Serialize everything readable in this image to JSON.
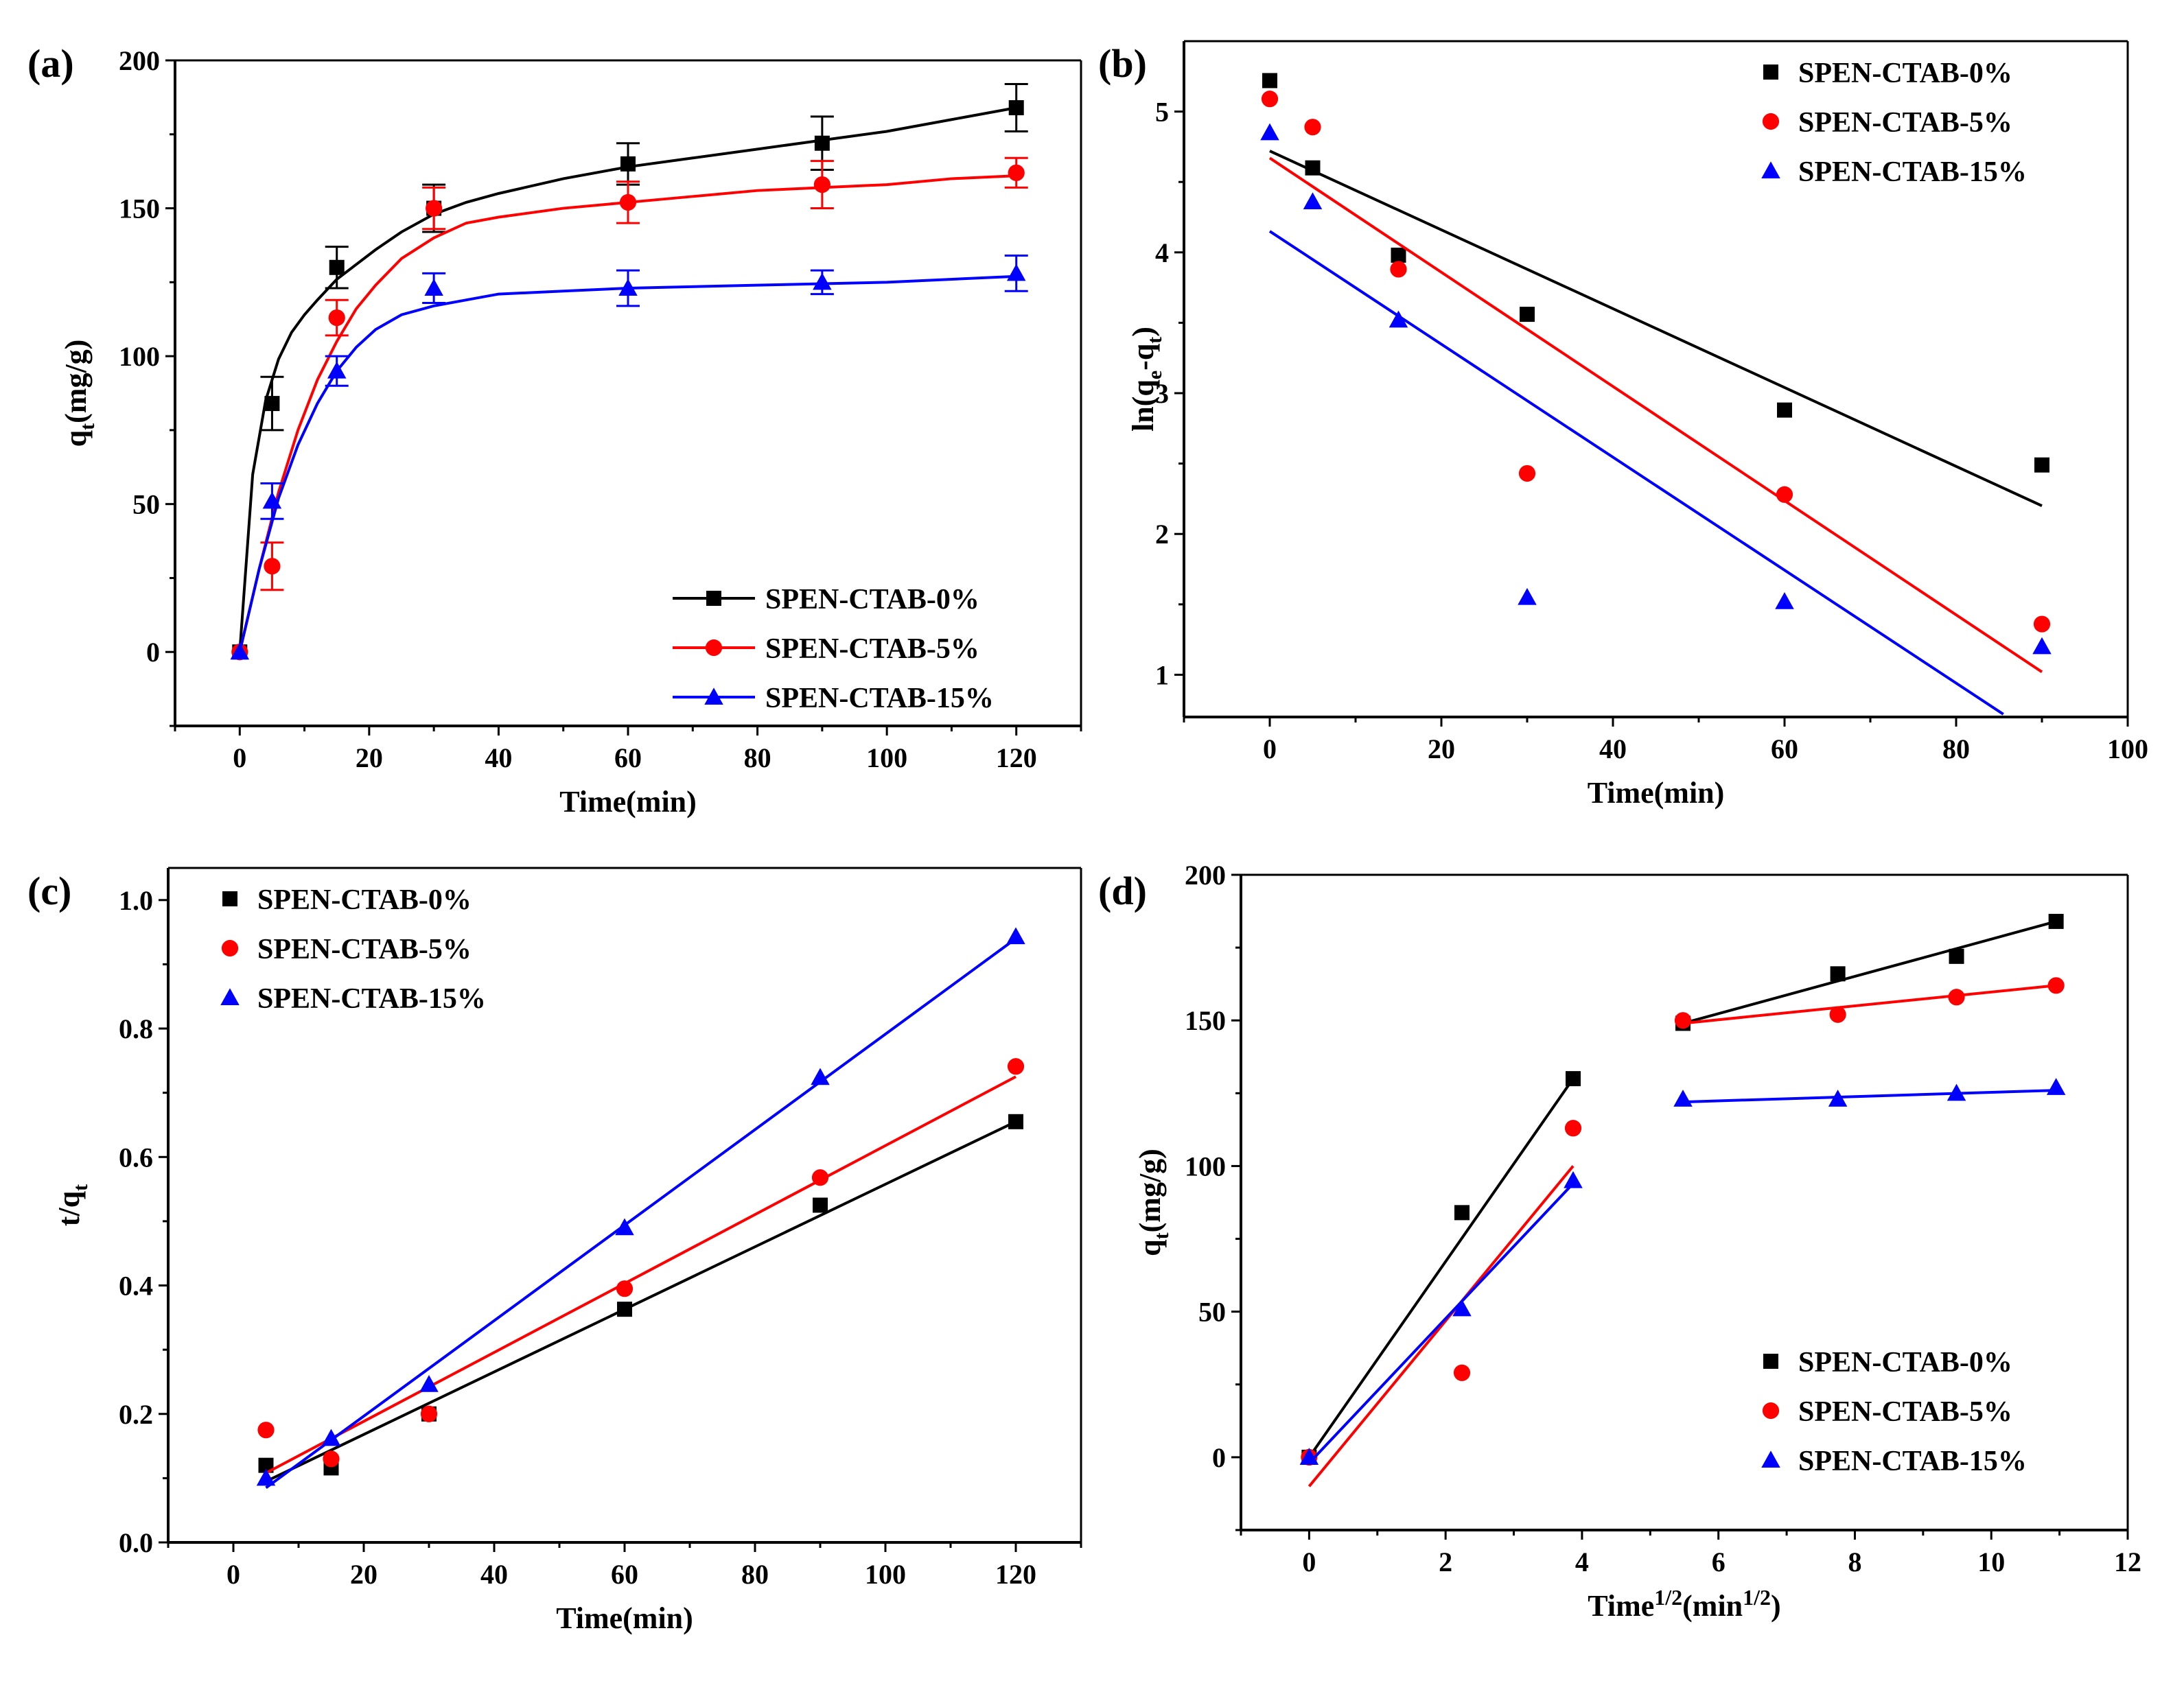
{
  "chart_data": [
    {
      "id": "a",
      "panel_label": "(a)",
      "type": "line",
      "xlabel": "Time(min)",
      "ylabel_main": "q",
      "ylabel_sub": "t",
      "ylabel_tail": "(mg/g)",
      "xlim": [
        -10,
        130
      ],
      "ylim": [
        -25,
        200
      ],
      "xticks": [
        0,
        20,
        40,
        60,
        80,
        100,
        120
      ],
      "yticks": [
        0,
        50,
        100,
        150,
        200
      ],
      "legend": "bottom-right",
      "legend_mode": "line",
      "series": [
        {
          "name": "SPEN-CTAB-0%",
          "color": "#000000",
          "marker": "square",
          "x": [
            0,
            5,
            15,
            30,
            60,
            90,
            120
          ],
          "y": [
            0,
            84,
            130,
            150,
            165,
            172,
            184
          ],
          "err": [
            0,
            9,
            7,
            8,
            7,
            9,
            8
          ],
          "fit_x": [
            0,
            2,
            4,
            6,
            8,
            10,
            12,
            15,
            18,
            21,
            25,
            30,
            35,
            40,
            50,
            60,
            70,
            80,
            90,
            100,
            110,
            120
          ],
          "fit_y": [
            0,
            60,
            85,
            99,
            108,
            114,
            119,
            126,
            131,
            136,
            142,
            148,
            152,
            155,
            160,
            164,
            167,
            170,
            173,
            176,
            180,
            184
          ]
        },
        {
          "name": "SPEN-CTAB-5%",
          "color": "#ff0000",
          "marker": "circle",
          "x": [
            0,
            5,
            15,
            30,
            60,
            90,
            120
          ],
          "y": [
            0,
            29,
            113,
            150,
            152,
            158,
            162
          ],
          "err": [
            0,
            8,
            6,
            7,
            7,
            8,
            5
          ],
          "fit_x": [
            0,
            3,
            6,
            9,
            12,
            15,
            18,
            21,
            25,
            30,
            35,
            40,
            50,
            60,
            70,
            80,
            90,
            100,
            110,
            120
          ],
          "fit_y": [
            0,
            28,
            54,
            75,
            92,
            105,
            116,
            124,
            133,
            140,
            145,
            147,
            150,
            152,
            154,
            156,
            157,
            158,
            160,
            161
          ]
        },
        {
          "name": "SPEN-CTAB-15%",
          "color": "#0000ff",
          "marker": "triangle",
          "x": [
            0,
            5,
            15,
            30,
            60,
            90,
            120
          ],
          "y": [
            0,
            51,
            95,
            123,
            123,
            125,
            128
          ],
          "err": [
            0,
            6,
            5,
            5,
            6,
            4,
            6
          ],
          "fit_x": [
            0,
            3,
            6,
            9,
            12,
            15,
            18,
            21,
            25,
            30,
            35,
            40,
            50,
            60,
            80,
            100,
            120
          ],
          "fit_y": [
            0,
            28,
            52,
            70,
            84,
            95,
            103,
            109,
            114,
            117,
            119,
            121,
            122,
            123,
            124,
            125,
            127
          ]
        }
      ]
    },
    {
      "id": "b",
      "panel_label": "(b)",
      "type": "scatter",
      "xlabel": "Time(min)",
      "ylabel_main": "ln(q",
      "ylabel_sub": "e",
      "ylabel_mid": "-q",
      "ylabel_sub2": "t",
      "ylabel_tail": ")",
      "xlim": [
        -10,
        100
      ],
      "ylim": [
        0.7,
        5.5
      ],
      "xticks": [
        0,
        20,
        40,
        60,
        80,
        100
      ],
      "yticks": [
        1,
        2,
        3,
        4,
        5
      ],
      "legend": "top-right",
      "legend_mode": "marker",
      "series": [
        {
          "name": "SPEN-CTAB-0%",
          "color": "#000000",
          "marker": "square",
          "x": [
            0,
            5,
            15,
            30,
            60,
            90
          ],
          "y": [
            5.22,
            4.6,
            3.98,
            3.56,
            2.88,
            2.49
          ],
          "fit_x": [
            0,
            90
          ],
          "fit_y": [
            4.72,
            2.2
          ]
        },
        {
          "name": "SPEN-CTAB-5%",
          "color": "#ff0000",
          "marker": "circle",
          "x": [
            0,
            5,
            15,
            30,
            60,
            90
          ],
          "y": [
            5.09,
            4.89,
            3.88,
            2.43,
            2.28,
            1.36
          ],
          "fit_x": [
            0,
            90
          ],
          "fit_y": [
            4.67,
            1.02
          ]
        },
        {
          "name": "SPEN-CTAB-15%",
          "color": "#0000ff",
          "marker": "triangle",
          "x": [
            0,
            5,
            15,
            30,
            60,
            90
          ],
          "y": [
            4.85,
            4.36,
            3.52,
            1.55,
            1.52,
            1.2
          ],
          "fit_x": [
            0,
            85.5
          ],
          "fit_y": [
            4.15,
            0.72
          ]
        }
      ]
    },
    {
      "id": "c",
      "panel_label": "(c)",
      "type": "scatter",
      "xlabel": "Time(min)",
      "ylabel_main": "t/q",
      "ylabel_sub": "t",
      "ylabel_tail": "",
      "xlim": [
        -10,
        130
      ],
      "ylim": [
        0,
        1.05
      ],
      "xticks": [
        0,
        20,
        40,
        60,
        80,
        100,
        120
      ],
      "yticks": [
        0.0,
        0.2,
        0.4,
        0.6,
        0.8,
        1.0
      ],
      "legend": "top-left",
      "legend_mode": "marker",
      "series": [
        {
          "name": "SPEN-CTAB-0%",
          "color": "#000000",
          "marker": "square",
          "x": [
            5,
            15,
            30,
            60,
            90,
            120
          ],
          "y": [
            0.12,
            0.116,
            0.2,
            0.363,
            0.525,
            0.655
          ],
          "fit_x": [
            5,
            120
          ],
          "fit_y": [
            0.095,
            0.655
          ]
        },
        {
          "name": "SPEN-CTAB-5%",
          "color": "#ff0000",
          "marker": "circle",
          "x": [
            5,
            15,
            30,
            60,
            90,
            120
          ],
          "y": [
            0.175,
            0.13,
            0.2,
            0.395,
            0.568,
            0.741
          ],
          "fit_x": [
            5,
            120
          ],
          "fit_y": [
            0.108,
            0.725
          ]
        },
        {
          "name": "SPEN-CTAB-15%",
          "color": "#0000ff",
          "marker": "triangle",
          "x": [
            5,
            15,
            30,
            60,
            90,
            120
          ],
          "y": [
            0.1,
            0.162,
            0.246,
            0.49,
            0.724,
            0.943
          ],
          "fit_x": [
            5,
            120
          ],
          "fit_y": [
            0.085,
            0.94
          ]
        }
      ]
    },
    {
      "id": "d",
      "panel_label": "(d)",
      "type": "scatter",
      "xlabel_main": "Time",
      "xlabel_sup": "1/2",
      "xlabel_mid": "(min",
      "xlabel_sup2": "1/2",
      "xlabel_tail": ")",
      "ylabel_main": "q",
      "ylabel_sub": "t",
      "ylabel_tail": "(mg/g)",
      "xlim": [
        -1,
        12
      ],
      "ylim": [
        -25,
        200
      ],
      "xticks": [
        0,
        2,
        4,
        6,
        8,
        10,
        12
      ],
      "yticks": [
        0,
        50,
        100,
        150,
        200
      ],
      "legend": "bottom-right",
      "legend_mode": "marker",
      "series": [
        {
          "name": "SPEN-CTAB-0%",
          "color": "#000000",
          "marker": "square",
          "x": [
            0,
            2.24,
            3.87,
            5.48,
            7.75,
            9.49,
            10.95
          ],
          "y": [
            0,
            84,
            130,
            149,
            166,
            172,
            184
          ],
          "fits": [
            {
              "x": [
                0,
                3.87
              ],
              "y": [
                0,
                130
              ]
            },
            {
              "x": [
                5.48,
                10.95
              ],
              "y": [
                149,
                184
              ]
            }
          ]
        },
        {
          "name": "SPEN-CTAB-5%",
          "color": "#ff0000",
          "marker": "circle",
          "x": [
            0,
            2.24,
            3.87,
            5.48,
            7.75,
            9.49,
            10.95
          ],
          "y": [
            0,
            29,
            113,
            150,
            152,
            158,
            162
          ],
          "fits": [
            {
              "x": [
                0,
                3.87
              ],
              "y": [
                -10,
                100
              ]
            },
            {
              "x": [
                5.48,
                10.95
              ],
              "y": [
                149,
                162
              ]
            }
          ]
        },
        {
          "name": "SPEN-CTAB-15%",
          "color": "#0000ff",
          "marker": "triangle",
          "x": [
            0,
            2.24,
            3.87,
            5.48,
            7.75,
            9.49,
            10.95
          ],
          "y": [
            0,
            51,
            95,
            123,
            123,
            125,
            127
          ],
          "fits": [
            {
              "x": [
                0,
                3.87
              ],
              "y": [
                -2,
                94
              ]
            },
            {
              "x": [
                5.48,
                10.95
              ],
              "y": [
                122,
                126
              ]
            }
          ]
        }
      ]
    }
  ]
}
